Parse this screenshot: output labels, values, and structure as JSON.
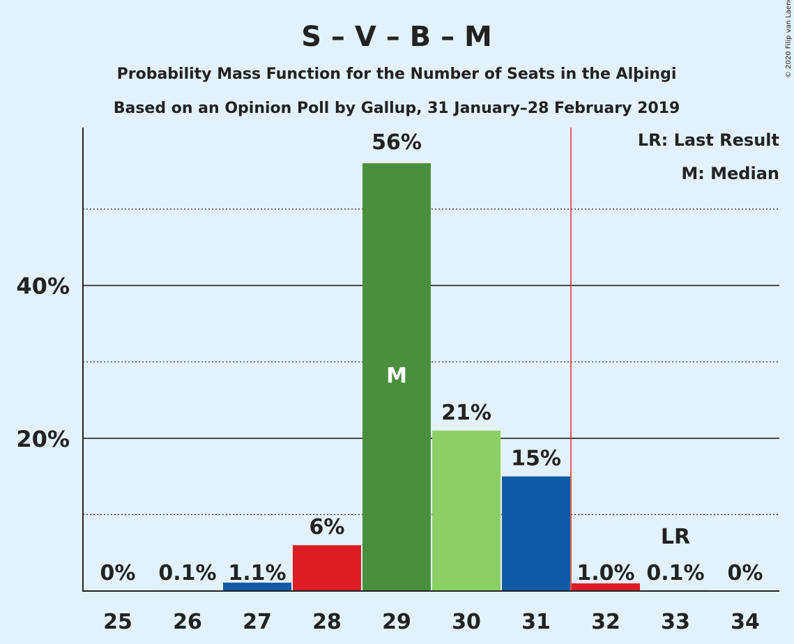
{
  "header": {
    "title": "S – V – B – M",
    "subtitle1": "Probability Mass Function for the Number of Seats in the Alþingi",
    "subtitle2": "Based on an Opinion Poll by Gallup, 31 January–28 February 2019",
    "copyright": "© 2020 Filip van Laenen"
  },
  "legend": {
    "lr": "LR: Last Result",
    "m": "M: Median"
  },
  "markers": {
    "median_label": "M",
    "median_seat": 29,
    "last_result_label": "LR",
    "last_result_seat": 33,
    "majority_line_after_seat": 31,
    "majority_line_color": "#dd1c24"
  },
  "chart_data": {
    "type": "bar",
    "title": "S – V – B – M",
    "xlabel": "",
    "ylabel": "",
    "categories": [
      "25",
      "26",
      "27",
      "28",
      "29",
      "30",
      "31",
      "32",
      "33",
      "34"
    ],
    "values": [
      0,
      0.1,
      1.1,
      6,
      56,
      21,
      15,
      1.0,
      0.1,
      0
    ],
    "data_labels": [
      "0%",
      "0.1%",
      "1.1%",
      "6%",
      "56%",
      "21%",
      "15%",
      "1.0%",
      "0.1%",
      "0%"
    ],
    "colors": [
      "#0e5aa7",
      "#0e5aa7",
      "#0e5aa7",
      "#dd1c24",
      "#4a8f3e",
      "#8ccf64",
      "#0e5aa7",
      "#dd1c24",
      "#0e5aa7",
      "#0e5aa7"
    ],
    "ylim": [
      0,
      60
    ],
    "yticks_major": [
      20,
      40
    ],
    "ytick_labels": [
      "20%",
      "40%"
    ],
    "yticks_minor": [
      10,
      30,
      50
    ],
    "grid": true
  }
}
